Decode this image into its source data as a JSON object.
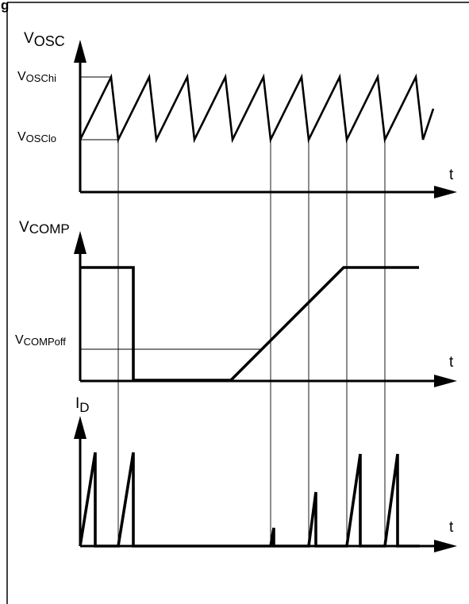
{
  "header_fragment": "g",
  "panels": {
    "vosc": {
      "axis_label_main": "V",
      "axis_label_sub": "OSC",
      "level_hi_main": "V",
      "level_hi_sub": "OSChi",
      "level_lo_main": "V",
      "level_lo_sub": "OSClo",
      "time_label": "t"
    },
    "vcomp": {
      "axis_label_main": "V",
      "axis_label_sub": "COMP",
      "level_off_main": "V",
      "level_off_sub": "COMPoff",
      "time_label": "t"
    },
    "id": {
      "axis_label_main": "I",
      "axis_label_sub": "D",
      "time_label": "t"
    }
  }
}
